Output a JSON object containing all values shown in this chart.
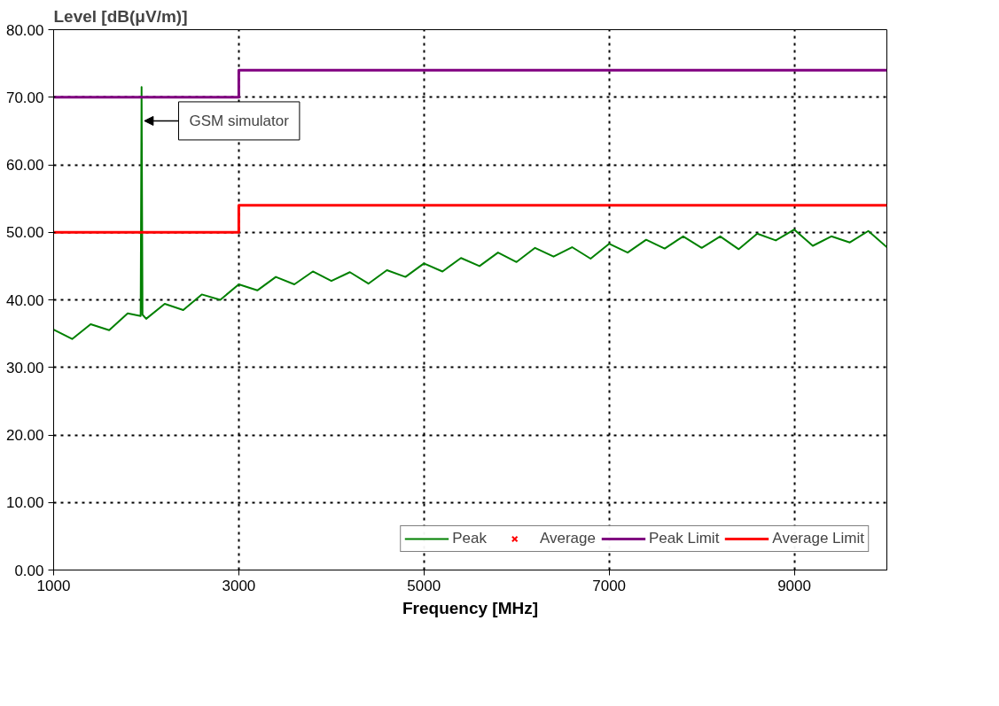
{
  "chart_data": {
    "type": "line",
    "xlabel": "Frequency [MHz]",
    "ylabel": "Level [dB(μV/m)]",
    "xlim": [
      1000,
      10000
    ],
    "ylim": [
      0,
      80
    ],
    "xticks": [
      1000,
      3000,
      5000,
      7000,
      9000
    ],
    "yticks": [
      {
        "value": 0,
        "label": "0.00"
      },
      {
        "value": 10,
        "label": "10.00"
      },
      {
        "value": 20,
        "label": "20.00"
      },
      {
        "value": 30,
        "label": "30.00"
      },
      {
        "value": 40,
        "label": "40.00"
      },
      {
        "value": 50,
        "label": "50.00"
      },
      {
        "value": 60,
        "label": "60.00"
      },
      {
        "value": 70,
        "label": "70.00"
      },
      {
        "value": 80,
        "label": "80.00"
      }
    ],
    "grid": true,
    "legend": "bottom right",
    "line_style": "solid",
    "annotations": [
      {
        "text": "GSM simulator",
        "x": 1950,
        "y": 66.5
      }
    ],
    "series": [
      {
        "name": "Peak",
        "color": "#008000",
        "x": [
          1000,
          1200,
          1400,
          1600,
          1800,
          1940,
          1950,
          1960,
          2000,
          2200,
          2400,
          2600,
          2800,
          3000,
          3200,
          3400,
          3600,
          3800,
          4000,
          4200,
          4400,
          4600,
          4800,
          5000,
          5200,
          5400,
          5600,
          5800,
          6000,
          6200,
          6400,
          6600,
          6800,
          7000,
          7200,
          7400,
          7600,
          7800,
          8000,
          8200,
          8400,
          8600,
          8800,
          9000,
          9200,
          9400,
          9600,
          9800,
          10000
        ],
        "values": [
          35.6,
          34.2,
          36.4,
          35.5,
          38.0,
          37.6,
          71.5,
          37.8,
          37.2,
          39.4,
          38.5,
          40.8,
          40.0,
          42.3,
          41.4,
          43.4,
          42.3,
          44.2,
          42.8,
          44.1,
          42.4,
          44.4,
          43.4,
          45.4,
          44.2,
          46.2,
          45.0,
          47.0,
          45.6,
          47.7,
          46.4,
          47.8,
          46.1,
          48.3,
          47.0,
          48.9,
          47.6,
          49.4,
          47.7,
          49.4,
          47.5,
          49.8,
          48.8,
          50.4,
          48.0,
          49.4,
          48.5,
          50.2,
          47.8
        ]
      },
      {
        "name": "Average",
        "color": "#ff0000",
        "type": "scatter",
        "marker": "cross"
      },
      {
        "name": "Peak Limit",
        "color": "#800080",
        "x": [
          1000,
          3000,
          3000,
          10000
        ],
        "values": [
          70,
          70,
          74,
          74
        ]
      },
      {
        "name": "Average Limit",
        "color": "#ff0000",
        "x": [
          1000,
          3000,
          3000,
          10000
        ],
        "values": [
          50,
          50,
          54,
          54
        ]
      }
    ]
  }
}
